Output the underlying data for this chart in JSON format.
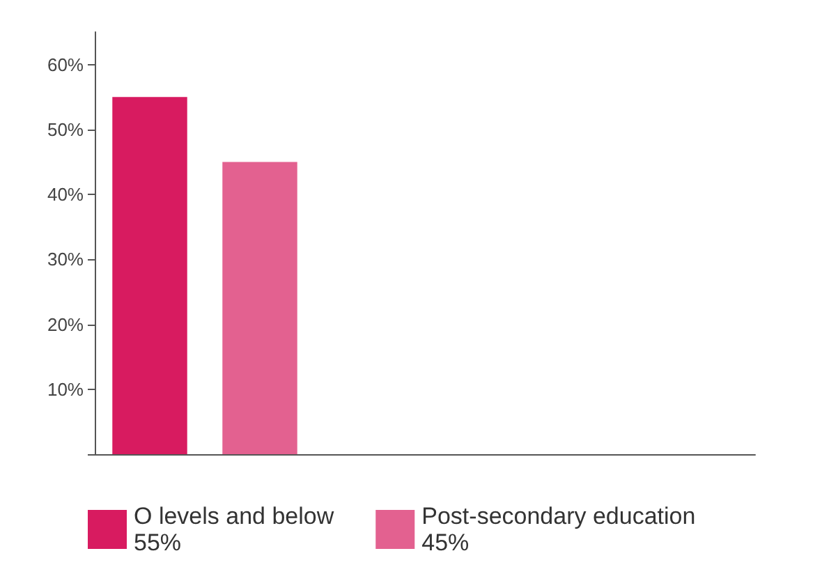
{
  "chart_data": {
    "type": "bar",
    "categories": [
      null,
      null
    ],
    "stacked": true,
    "series": [
      {
        "name": "O levels and below\n55%",
        "color": "#d81b60",
        "values": [
          55,
          null
        ]
      },
      {
        "name": "Post-secondary education\n45%",
        "color": "#e36190",
        "values": [
          null,
          45
        ]
      }
    ],
    "ylim": [
      0,
      65
    ],
    "yticks": [
      {
        "value": 0,
        "label": null
      },
      {
        "value": 10,
        "label": "10%"
      },
      {
        "value": 20,
        "label": "20%"
      },
      {
        "value": 30,
        "label": "30%"
      },
      {
        "value": 40,
        "label": "40%"
      },
      {
        "value": 50,
        "label": "50%"
      },
      {
        "value": 60,
        "label": "60%"
      }
    ],
    "grid": false,
    "legend": "bottom left"
  }
}
